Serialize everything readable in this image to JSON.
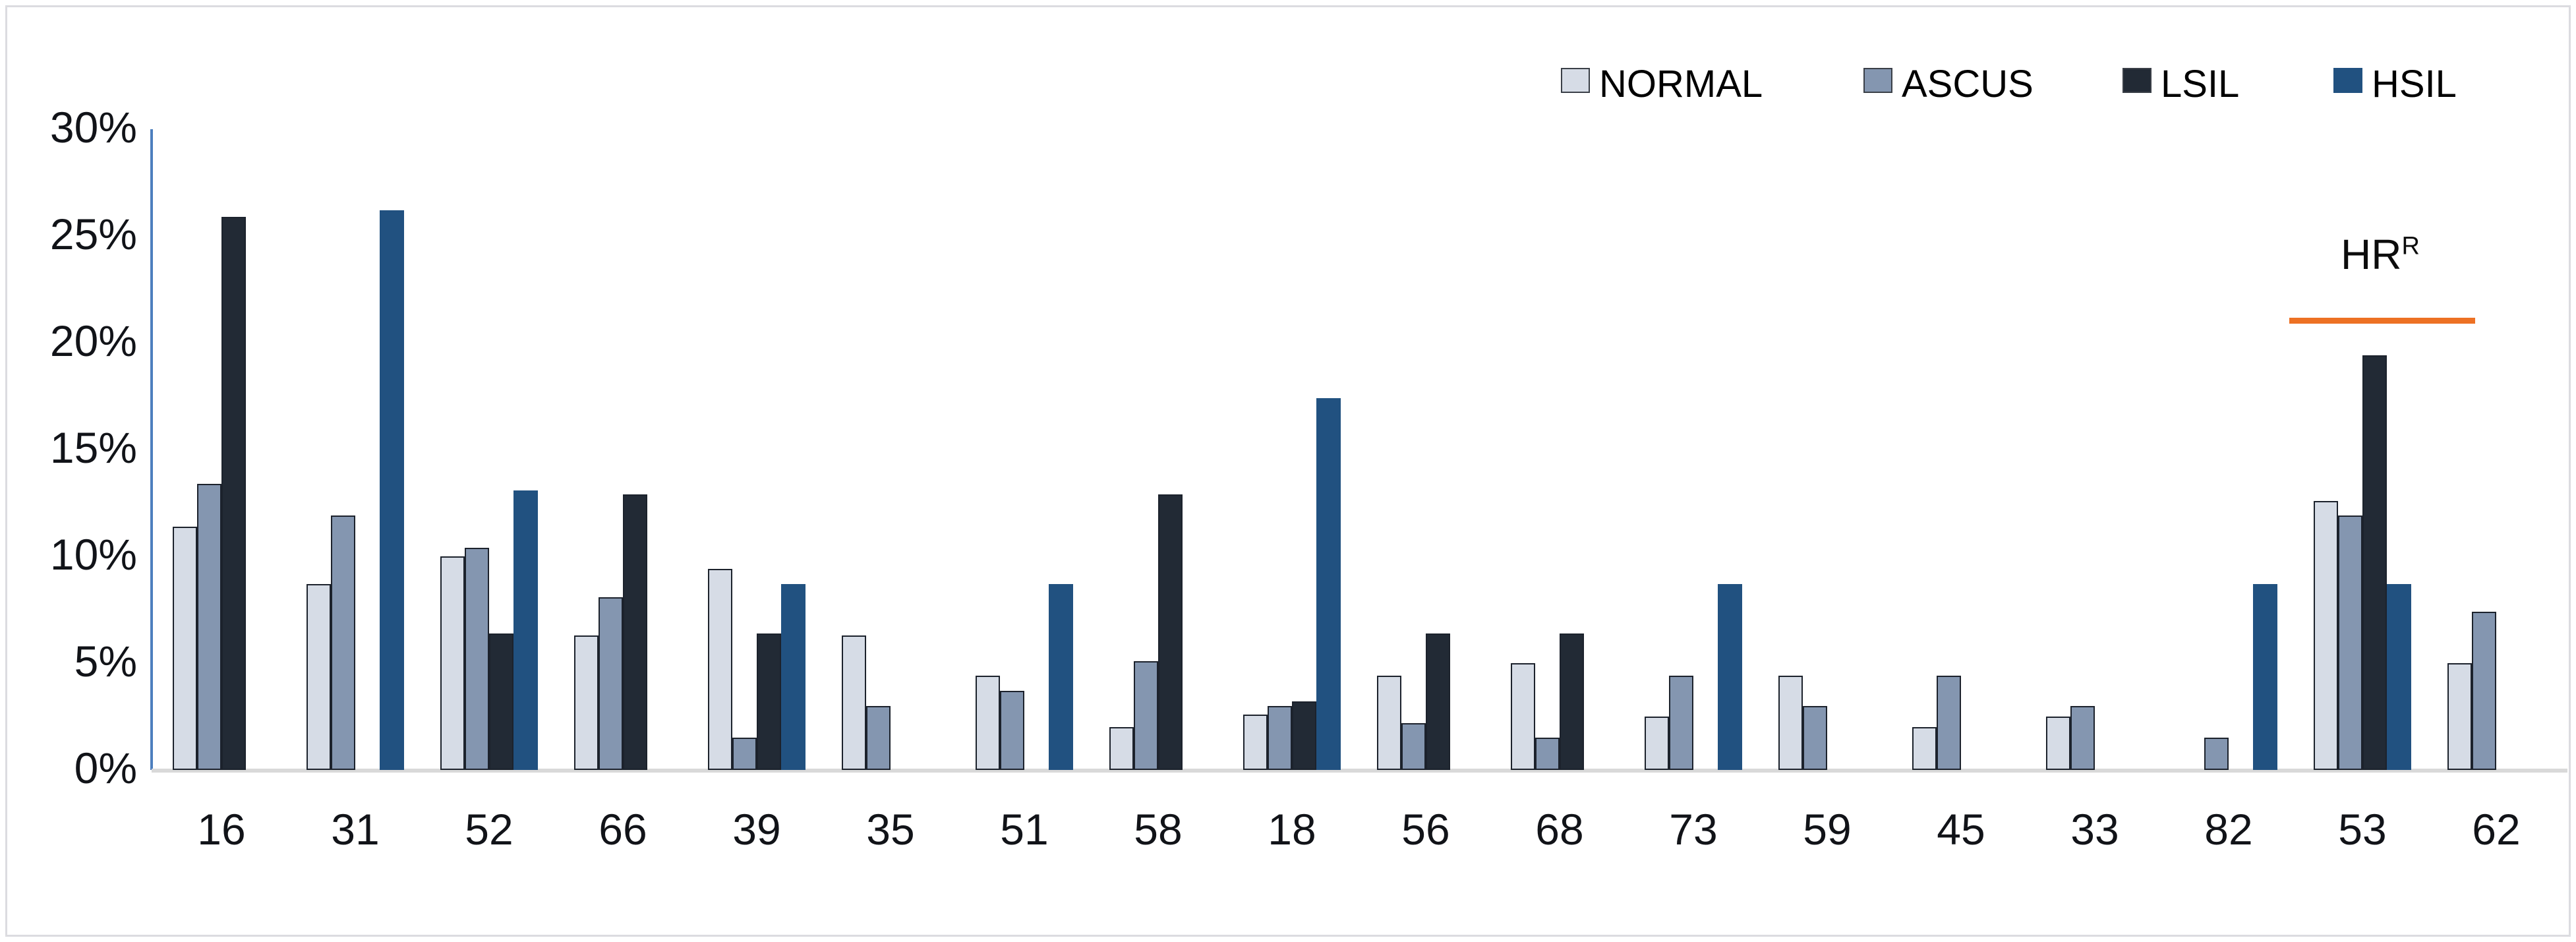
{
  "chart_data": {
    "type": "bar",
    "title": "",
    "xlabel": "",
    "ylabel": "",
    "ylim": [
      0,
      30
    ],
    "grid": false,
    "legend_position": "top-right",
    "yticks": [
      "0%",
      "5%",
      "10%",
      "15%",
      "20%",
      "25%",
      "30%"
    ],
    "categories": [
      "16",
      "31",
      "52",
      "66",
      "39",
      "35",
      "51",
      "58",
      "18",
      "56",
      "68",
      "73",
      "59",
      "45",
      "33",
      "82",
      "53",
      "62"
    ],
    "series": [
      {
        "name": "NORMAL",
        "color": "#d6dce6",
        "values": [
          11.4,
          8.7,
          10.0,
          6.3,
          9.4,
          6.3,
          4.4,
          2.0,
          2.6,
          4.4,
          5.0,
          2.5,
          4.4,
          2.0,
          2.5,
          0,
          12.6,
          5.0
        ]
      },
      {
        "name": "ASCUS",
        "color": "#8496b0",
        "values": [
          13.4,
          11.9,
          10.4,
          8.1,
          1.5,
          3.0,
          3.7,
          5.1,
          3.0,
          2.2,
          1.5,
          4.4,
          3.0,
          4.4,
          3.0,
          1.5,
          11.9,
          7.4
        ]
      },
      {
        "name": "LSIL",
        "color": "#222a35",
        "values": [
          25.9,
          0,
          6.4,
          12.9,
          6.4,
          0,
          0,
          12.9,
          3.2,
          6.4,
          6.4,
          0,
          0,
          0,
          0,
          0,
          19.4,
          0
        ]
      },
      {
        "name": "HSIL",
        "color": "#215180",
        "values": [
          0,
          26.2,
          13.1,
          0,
          8.7,
          0,
          8.7,
          0,
          17.4,
          0,
          0,
          8.7,
          0,
          0,
          0,
          8.7,
          8.7,
          0
        ]
      }
    ],
    "annotation": {
      "text": "HR",
      "superscript": "R",
      "underline_color": "#ed7124"
    }
  },
  "style_colors": {
    "y_axis_line": "#4d7fbe",
    "x_axis_line": "#d9d9d9",
    "bar_outline": "#1c222c",
    "annotation_line": "#ed7124",
    "label_text": "#111318"
  }
}
